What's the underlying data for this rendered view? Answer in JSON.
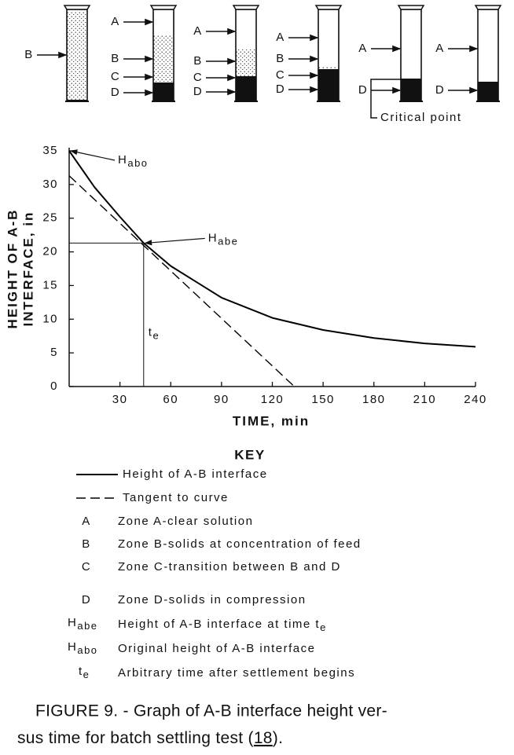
{
  "diagram": {
    "cylinders": [
      [
        "B"
      ],
      [
        "A",
        "B",
        "C",
        "D"
      ],
      [
        "A",
        "B",
        "C",
        "D"
      ],
      [
        "A",
        "B",
        "C",
        "D"
      ],
      [
        "A",
        "D"
      ],
      [
        "A",
        "D"
      ]
    ],
    "critical_point": "Critical point"
  },
  "chart_data": {
    "type": "line",
    "xlabel": "TIME, min",
    "ylabel": [
      "HEIGHT OF A-B",
      "INTERFACE, in"
    ],
    "series": [
      {
        "name": "Height of A-B interface",
        "color": "#000000",
        "dash": "solid",
        "x": [
          0,
          15,
          30,
          44,
          60,
          90,
          120,
          150,
          180,
          210,
          240
        ],
        "values": [
          35,
          29.6,
          25.2,
          21.3,
          17.9,
          13.2,
          10.2,
          8.4,
          7.2,
          6.4,
          5.9
        ]
      },
      {
        "name": "Tangent to curve",
        "color": "#000000",
        "dash": "dashed",
        "x": [
          0,
          133
        ],
        "values": [
          31.3,
          0
        ]
      }
    ],
    "xlim": [
      0,
      240
    ],
    "xticks": [
      30,
      60,
      90,
      120,
      150,
      180,
      210,
      240
    ],
    "ylim": [
      0,
      35
    ],
    "yticks": [
      0,
      5,
      10,
      15,
      20,
      25,
      30,
      35
    ],
    "guide": {
      "x": 44,
      "y": 21.3
    },
    "annotations": [
      {
        "text": "H",
        "subscript": "abo",
        "x": 0,
        "y": 35
      },
      {
        "text": "H",
        "subscript": "abe",
        "x": 44,
        "y": 21.3
      },
      {
        "text": "t",
        "subscript": "e",
        "x": 44,
        "y": 8
      }
    ]
  },
  "key": {
    "title": "KEY",
    "entries": [
      {
        "symbol": "A",
        "text": "Zone A-clear solution"
      },
      {
        "symbol": "B",
        "text": "Zone B-solids at concentration of feed"
      },
      {
        "symbol": "C",
        "text": "Zone C-transition between B and D"
      },
      {
        "symbol": "D",
        "text": "Zone D-solids in compression"
      },
      {
        "symbol": "H",
        "symbol_sub": "abe",
        "text": "Height of A-B interface at time t",
        "text_sub": "e"
      },
      {
        "symbol": "H",
        "symbol_sub": "abo",
        "text": "Original height of A-B interface"
      },
      {
        "symbol": "t",
        "symbol_sub": "e",
        "text": "Arbitrary time after settlement begins"
      }
    ]
  },
  "caption": {
    "line1": "FIGURE 9. - Graph of A-B interface height ver-",
    "line2": "sus time for batch settling test (",
    "ref": "18",
    "line2_end": ")."
  }
}
